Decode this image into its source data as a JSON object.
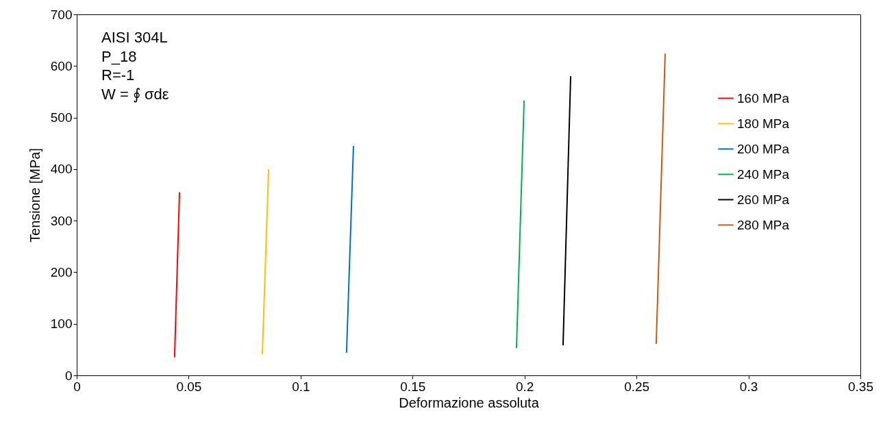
{
  "chart_data": {
    "type": "line",
    "xlabel": "Deformazione assoluta",
    "ylabel": "Tensione [MPa]",
    "annotations": [
      "AISI 304L",
      "P_18",
      "R=-1",
      "W = ∮ σdε"
    ],
    "series": [
      {
        "name": "160 MPa",
        "color": "#ff0000",
        "x": [
          0.0437,
          0.0459
        ],
        "values": [
          35,
          355
        ]
      },
      {
        "name": "180 MPa",
        "color": "#ffc000",
        "x": [
          0.0829,
          0.0857
        ],
        "values": [
          41,
          400
        ]
      },
      {
        "name": "200 MPa",
        "color": "#0070c0",
        "x": [
          0.1205,
          0.1236
        ],
        "values": [
          44,
          445
        ]
      },
      {
        "name": "240 MPa",
        "color": "#00b050",
        "x": [
          0.1964,
          0.1998
        ],
        "values": [
          53,
          533
        ]
      },
      {
        "name": "260 MPa",
        "color": "#000000",
        "x": [
          0.2172,
          0.2206
        ],
        "values": [
          58,
          580
        ]
      },
      {
        "name": "280 MPa",
        "color": "#c55a11",
        "x": [
          0.2588,
          0.2628
        ],
        "values": [
          61,
          624
        ]
      }
    ],
    "xlim": [
      0,
      0.35
    ],
    "xticks": [
      0,
      0.05,
      0.1,
      0.15,
      0.2,
      0.25,
      0.3,
      0.35
    ],
    "ylim": [
      0,
      700
    ],
    "yticks": [
      0,
      100,
      200,
      300,
      400,
      500,
      600,
      700
    ],
    "grid": false,
    "legend": "right",
    "marker": "none",
    "line_style": "solid"
  }
}
